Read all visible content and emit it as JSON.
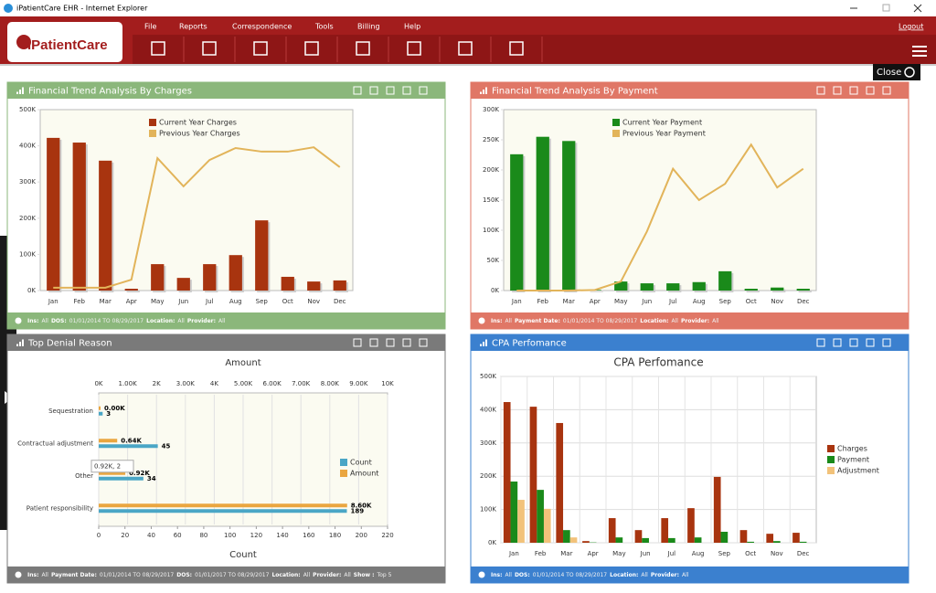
{
  "window": {
    "title": "iPatientCare EHR - Internet Explorer"
  },
  "header": {
    "logo": "iPatientCare",
    "menu": [
      "File",
      "Reports",
      "Correspondence",
      "Tools",
      "Billing",
      "Help"
    ],
    "logout": "Logout",
    "close": "Close"
  },
  "chart_data": [
    {
      "type": "bar",
      "title": "Financial Trend Analysis By Charges",
      "panel_color": "#8bb77b",
      "legend": "top",
      "grid": false,
      "categories": [
        "Jan",
        "Feb",
        "Mar",
        "Apr",
        "May",
        "Jun",
        "Jul",
        "Aug",
        "Sep",
        "Oct",
        "Nov",
        "Dec"
      ],
      "series": [
        {
          "name": "Current Year Charges",
          "kind": "bar",
          "color": "#a8340f",
          "values": [
            422000,
            409000,
            359000,
            5000,
            73000,
            35000,
            73000,
            98000,
            194000,
            38000,
            25000,
            28000
          ]
        },
        {
          "name": "Previous Year Charges",
          "kind": "line",
          "color": "#e2b45a",
          "values": [
            8000,
            8000,
            8000,
            30000,
            366000,
            288000,
            361000,
            394000,
            384000,
            384000,
            396000,
            341000
          ]
        }
      ],
      "ylim": [
        0,
        500000
      ],
      "yticks": [
        {
          "value": 0,
          "label": "0K"
        },
        {
          "value": 100000,
          "label": "100K"
        },
        {
          "value": 200000,
          "label": "200K"
        },
        {
          "value": 300000,
          "label": "300K"
        },
        {
          "value": 400000,
          "label": "400K"
        },
        {
          "value": 500000,
          "label": "500K"
        }
      ],
      "filters": [
        {
          "label": "Ins:",
          "value": "All"
        },
        {
          "label": "DOS:",
          "value": "01/01/2014 TO 08/29/2017"
        },
        {
          "label": "Location:",
          "value": "All"
        },
        {
          "label": "Provider:",
          "value": "All"
        }
      ]
    },
    {
      "type": "bar",
      "title": "Financial Trend Analysis By Payment",
      "panel_color": "#e07766",
      "legend": "top",
      "grid": false,
      "categories": [
        "Jan",
        "Feb",
        "Mar",
        "Apr",
        "May",
        "Jun",
        "Jul",
        "Aug",
        "Sep",
        "Oct",
        "Nov",
        "Dec"
      ],
      "series": [
        {
          "name": "Current Year Payment",
          "kind": "bar",
          "color": "#1a8a1a",
          "values": [
            226000,
            255000,
            248000,
            1000,
            15000,
            12000,
            12000,
            14000,
            32000,
            3000,
            5000,
            3000
          ]
        },
        {
          "name": "Previous Year Payment",
          "kind": "line",
          "color": "#e2b45a",
          "values": [
            0,
            0,
            0,
            1000,
            15000,
            98000,
            202000,
            150000,
            177000,
            242000,
            171000,
            202000
          ]
        }
      ],
      "ylim": [
        0,
        300000
      ],
      "yticks": [
        {
          "value": 0,
          "label": "0K"
        },
        {
          "value": 50000,
          "label": "50K"
        },
        {
          "value": 100000,
          "label": "100K"
        },
        {
          "value": 150000,
          "label": "150K"
        },
        {
          "value": 200000,
          "label": "200K"
        },
        {
          "value": 250000,
          "label": "250K"
        },
        {
          "value": 300000,
          "label": "300K"
        }
      ],
      "filters": [
        {
          "label": "Ins:",
          "value": "All"
        },
        {
          "label": "Payment Date:",
          "value": "01/01/2014 TO 08/29/2017"
        },
        {
          "label": "Location:",
          "value": "All"
        },
        {
          "label": "Provider:",
          "value": "All"
        }
      ]
    },
    {
      "type": "horizontal-bar",
      "title": "Top Denial Reason",
      "panel_color": "#7a7a7a",
      "legend": "right",
      "grid": true,
      "categories": [
        "Sequestration",
        "Contractual adjustment",
        "Other",
        "Patient responsibility"
      ],
      "series": [
        {
          "name": "Count",
          "axis": "x2",
          "color": "#4aa6c6",
          "values": [
            3,
            45,
            34,
            189
          ]
        },
        {
          "name": "Amount",
          "axis": "x",
          "color": "#eaa640",
          "values": [
            0,
            640,
            920,
            8600
          ],
          "value_labels": [
            "0.00K",
            "0.64K",
            "0.92K",
            "8.60K"
          ]
        }
      ],
      "xlabel": "Amount",
      "x2label": "Count",
      "xlim": [
        0,
        10000
      ],
      "xticks": [
        {
          "value": 0,
          "label": "0K"
        },
        {
          "value": 1000,
          "label": "1.00K"
        },
        {
          "value": 2000,
          "label": "2K"
        },
        {
          "value": 3000,
          "label": "3.00K"
        },
        {
          "value": 4000,
          "label": "4K"
        },
        {
          "value": 5000,
          "label": "5.00K"
        },
        {
          "value": 6000,
          "label": "6.00K"
        },
        {
          "value": 7000,
          "label": "7.00K"
        },
        {
          "value": 8000,
          "label": "8.00K"
        },
        {
          "value": 9000,
          "label": "9.00K"
        },
        {
          "value": 10000,
          "label": "10K"
        }
      ],
      "x2lim": [
        0,
        220
      ],
      "x2ticks": [
        0,
        20,
        40,
        60,
        80,
        100,
        120,
        140,
        160,
        180,
        200,
        220
      ],
      "tooltip": "0.92K, 2",
      "filters": [
        {
          "label": "Ins:",
          "value": "All"
        },
        {
          "label": "Payment Date:",
          "value": "01/01/2014 TO 08/29/2017"
        },
        {
          "label": "DOS:",
          "value": "01/01/2017 TO 08/29/2017"
        },
        {
          "label": "Location:",
          "value": "All"
        },
        {
          "label": "Provider:",
          "value": "All"
        },
        {
          "label": "Show :",
          "value": "Top 5"
        }
      ]
    },
    {
      "type": "bar",
      "title": "CPA Perfomance",
      "plot_title": "CPA Perfomance",
      "panel_color": "#3b80cf",
      "legend": "outside-right",
      "grid": true,
      "categories": [
        "Jan",
        "Feb",
        "Mar",
        "Apr",
        "May",
        "Jun",
        "Jul",
        "Aug",
        "Sep",
        "Oct",
        "Nov",
        "Dec"
      ],
      "series": [
        {
          "name": "Charges",
          "kind": "bar",
          "color": "#a8340f",
          "values": [
            423000,
            409000,
            360000,
            5000,
            74000,
            38000,
            74000,
            104000,
            198000,
            38000,
            27000,
            30000
          ]
        },
        {
          "name": "Payment",
          "kind": "bar",
          "color": "#1a8a1a",
          "values": [
            184000,
            159000,
            38000,
            1000,
            16000,
            14000,
            14000,
            16000,
            33000,
            3000,
            5000,
            3000
          ]
        },
        {
          "name": "Adjustment",
          "kind": "bar",
          "color": "#f2c27a",
          "values": [
            129000,
            102000,
            16000,
            0,
            0,
            0,
            0,
            0,
            0,
            0,
            0,
            0
          ]
        }
      ],
      "ylim": [
        0,
        500000
      ],
      "yticks": [
        {
          "value": 0,
          "label": "0K"
        },
        {
          "value": 100000,
          "label": "100K"
        },
        {
          "value": 200000,
          "label": "200K"
        },
        {
          "value": 300000,
          "label": "300K"
        },
        {
          "value": 400000,
          "label": "400K"
        },
        {
          "value": 500000,
          "label": "500K"
        }
      ],
      "filters": [
        {
          "label": "Ins:",
          "value": "All"
        },
        {
          "label": "DOS:",
          "value": "01/01/2014 TO 08/29/2017"
        },
        {
          "label": "Location:",
          "value": "All"
        },
        {
          "label": "Provider:",
          "value": "All"
        }
      ]
    }
  ]
}
